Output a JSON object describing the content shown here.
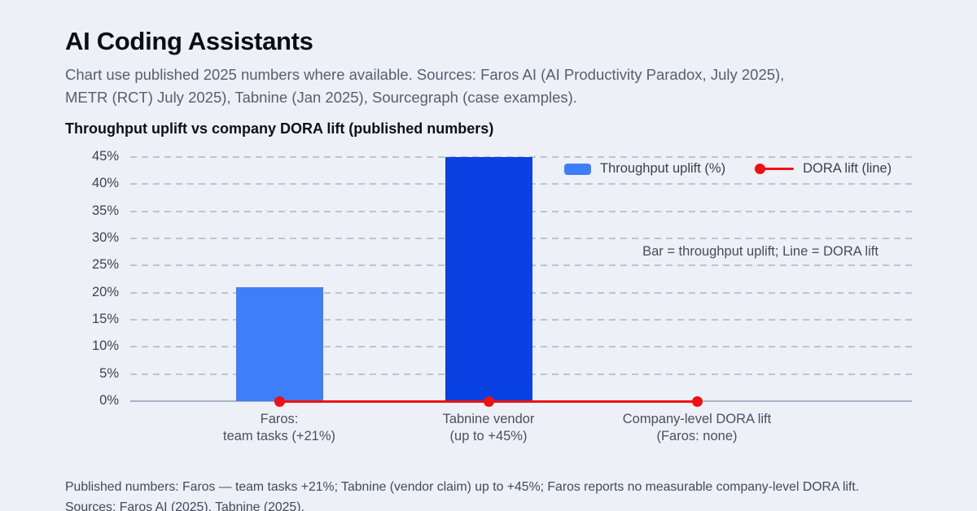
{
  "page": {
    "title": "AI Coding Assistants",
    "subtitle": "Chart use published 2025 numbers where available. Sources: Faros AI (AI Productivity Paradox, July 2025),\nMETR (RCT) July 2025), Tabnine (Jan 2025), Sourcegraph (case examples).",
    "section_title": "Throughput uplift vs company DORA lift (published numbers)",
    "footer": "Published numbers: Faros — team tasks +21%; Tabnine (vendor claim) up to +45%; Faros reports no measurable company-level DORA lift.\nSources: Faros AI (2025), Tabnine (2025)."
  },
  "legend": {
    "bar_label": "Throughput uplift (%)",
    "line_label": "DORA lift (line)"
  },
  "annotation": "Bar = throughput uplift; Line = DORA lift",
  "colors": {
    "background": "#edf0f7",
    "bar_faros": "#3e7ef9",
    "bar_tabnine": "#0a41e2",
    "dora_line": "#ee1111",
    "gridline": "#bdc3d1",
    "axis_baseline": "#a9b1c6"
  },
  "chart_data": {
    "type": "bar",
    "title": "Throughput uplift vs company DORA lift (published numbers)",
    "categories": [
      "Faros:\nteam tasks (+21%)",
      "Tabnine vendor\n(up to +45%)",
      "Company-level DORA lift\n(Faros: none)"
    ],
    "series": [
      {
        "name": "Throughput uplift (%)",
        "type": "bar",
        "values": [
          21,
          45,
          0
        ],
        "colors": [
          "#3e7ef9",
          "#0a41e2",
          null
        ]
      },
      {
        "name": "DORA lift (line)",
        "type": "line",
        "values": [
          0,
          0,
          0
        ],
        "color": "#ee1111"
      }
    ],
    "xlabel": "",
    "ylabel": "",
    "ylim": [
      0,
      45
    ],
    "ytick_step": 5,
    "ytick_suffix": "%",
    "grid": "dashed-horizontal",
    "legend_position": "top-right",
    "annotation": "Bar = throughput uplift; Line = DORA lift"
  }
}
